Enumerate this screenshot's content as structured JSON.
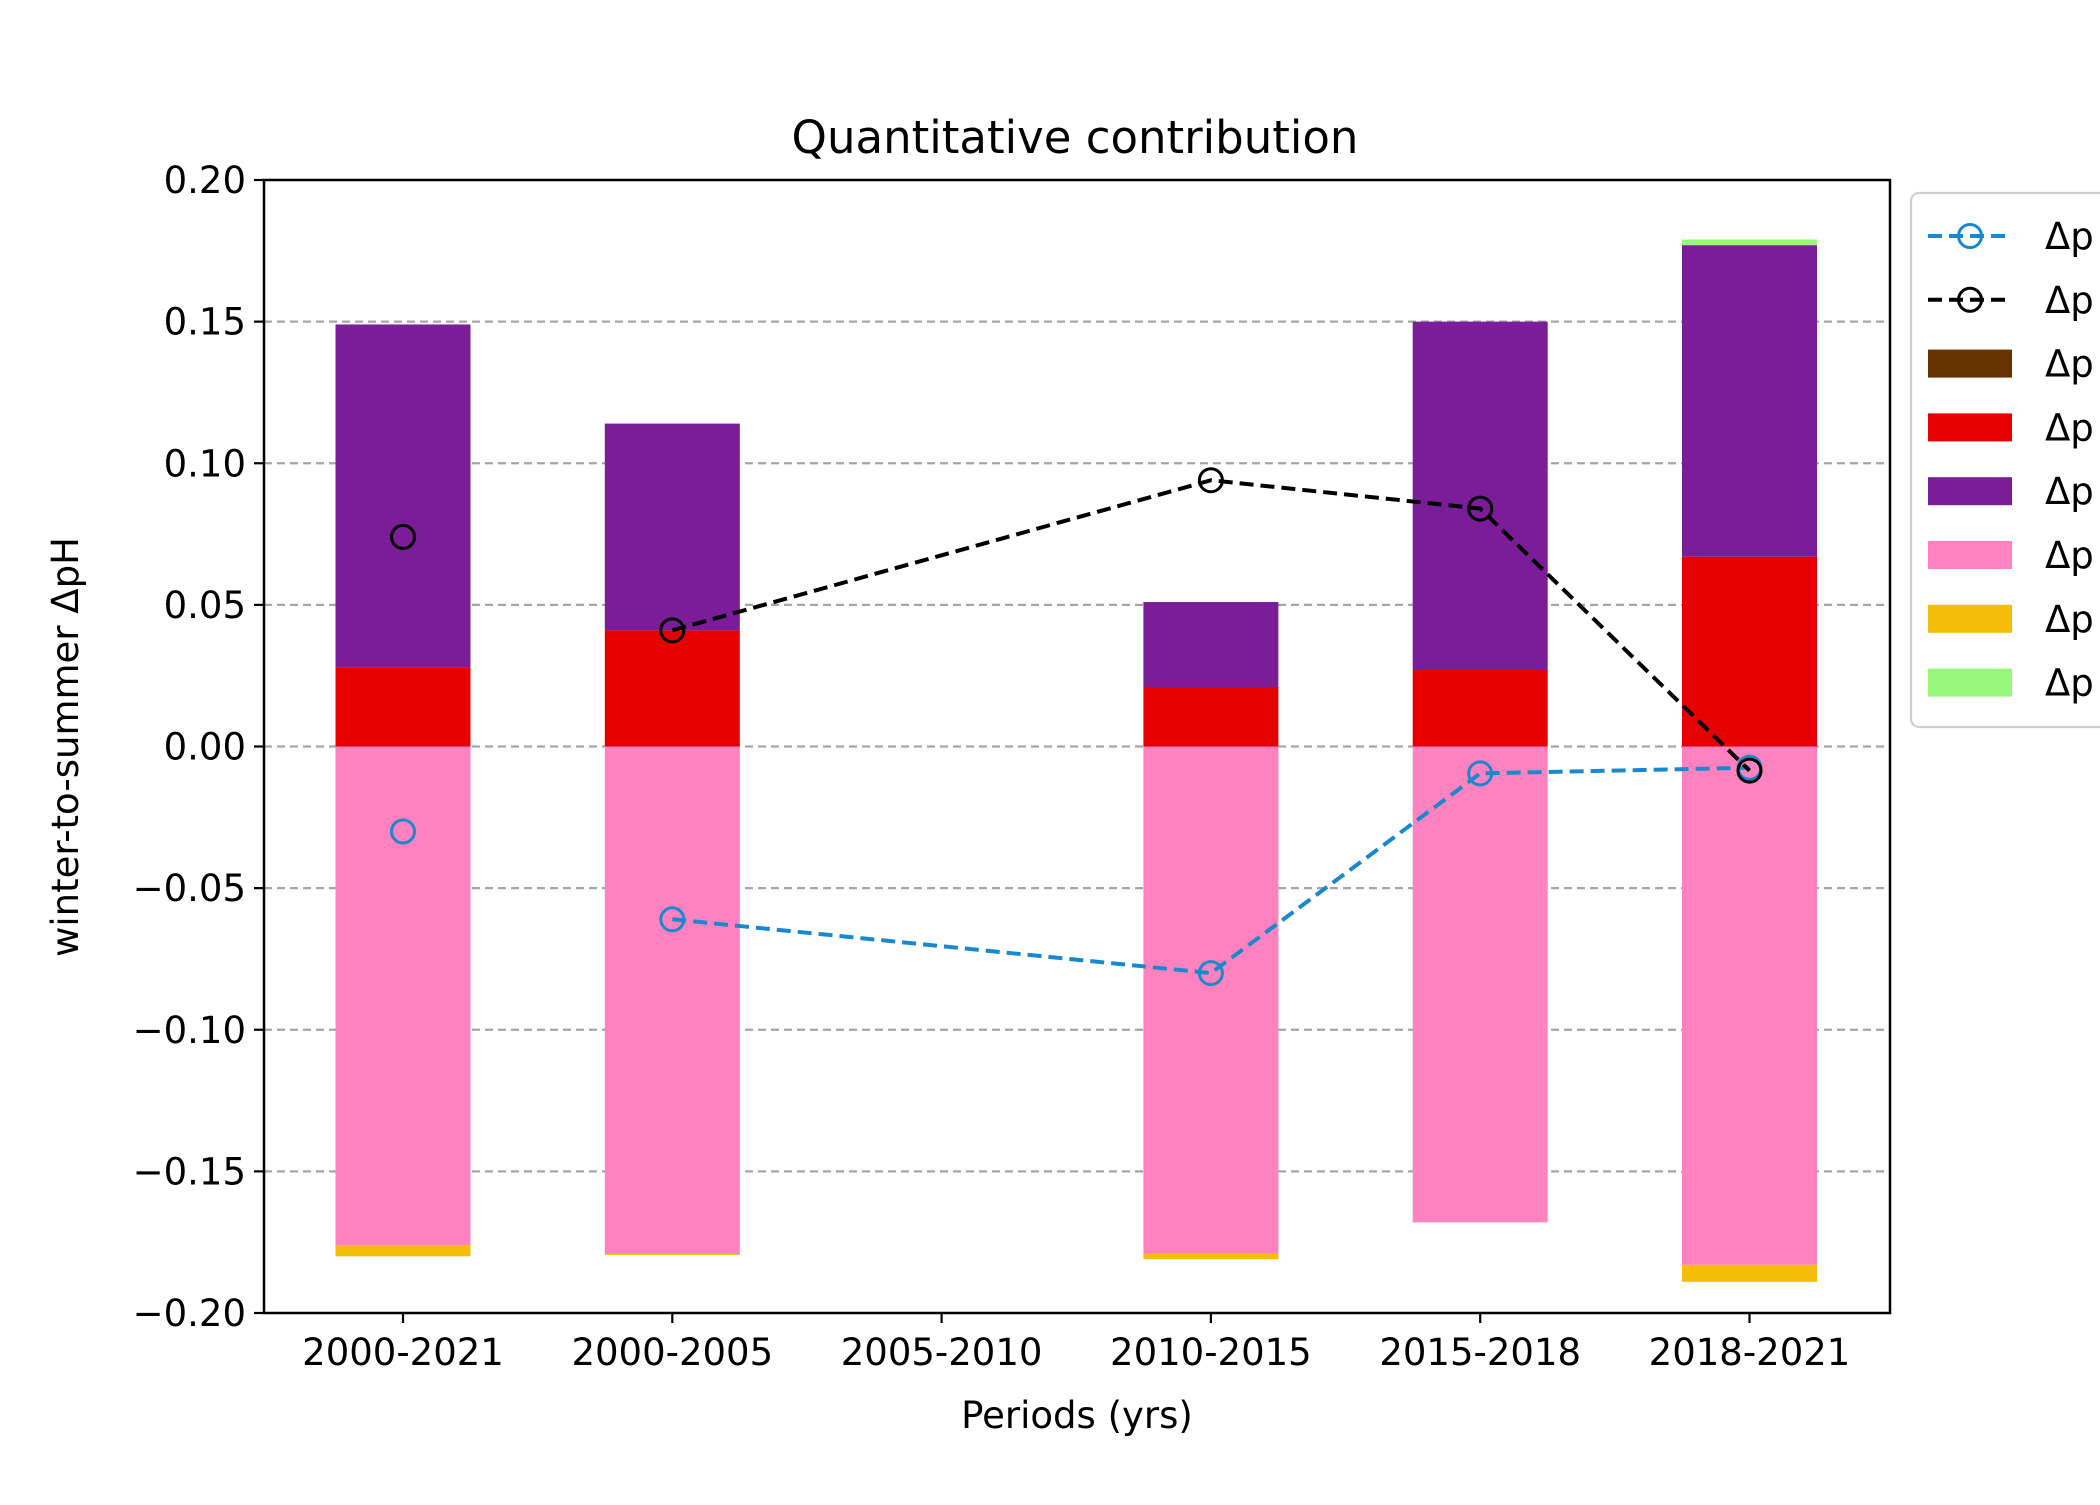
{
  "chart_data": {
    "type": "bar",
    "title": "Quantitative contribution",
    "xlabel": "Periods (yrs)",
    "ylabel": "winter-to-summer ΔpH",
    "ylim": [
      -0.2,
      0.2
    ],
    "yticks": [
      -0.2,
      -0.15,
      -0.1,
      -0.05,
      0.0,
      0.05,
      0.1,
      0.15,
      0.2
    ],
    "ytick_labels": [
      "−0.20",
      "−0.15",
      "−0.10",
      "−0.05",
      "0.00",
      "0.05",
      "0.10",
      "0.15",
      "0.20"
    ],
    "categories": [
      "2000-2021",
      "2000-2005",
      "2005-2010",
      "2010-2015",
      "2015-2018",
      "2018-2021"
    ],
    "grid": "horizontal dashed",
    "legend_placement": "outside right, top (clipped)",
    "stacked_series": [
      {
        "name": "Δp",
        "color": "#663300",
        "values": [
          0,
          0,
          0,
          0,
          0,
          0
        ]
      },
      {
        "name": "Δp",
        "color": "#e60000",
        "values": [
          0.028,
          0.041,
          0,
          0.021,
          0.027,
          0.067
        ]
      },
      {
        "name": "Δp",
        "color": "#7b1c99",
        "values": [
          0.121,
          0.073,
          0,
          0.03,
          0.123,
          0.11
        ]
      },
      {
        "name": "Δp",
        "color": "#ff82c0",
        "values": [
          -0.176,
          -0.179,
          0,
          -0.179,
          -0.168,
          -0.183
        ]
      },
      {
        "name": "Δp",
        "color": "#f5bc0a",
        "values": [
          -0.004,
          -0.0005,
          0,
          -0.002,
          0,
          -0.006
        ]
      },
      {
        "name": "Δp",
        "color": "#98f77a",
        "values": [
          0,
          0,
          0,
          0,
          0,
          0.002
        ]
      }
    ],
    "line_series": [
      {
        "name": "Δp",
        "color": "#1a88cc",
        "values": [
          -0.03,
          -0.061,
          null,
          -0.08,
          -0.0095,
          -0.0075
        ],
        "connect_from_index": 1
      },
      {
        "name": "Δp",
        "color": "#000000",
        "values": [
          0.074,
          0.041,
          null,
          0.094,
          0.084,
          -0.0085
        ],
        "connect_from_index": 1
      }
    ],
    "legend": [
      {
        "label": "Δp",
        "kind": "line",
        "color": "#1a88cc"
      },
      {
        "label": "Δp",
        "kind": "line",
        "color": "#000000"
      },
      {
        "label": "Δp",
        "kind": "patch",
        "color": "#663300"
      },
      {
        "label": "Δp",
        "kind": "patch",
        "color": "#e60000"
      },
      {
        "label": "Δp",
        "kind": "patch",
        "color": "#7b1c99"
      },
      {
        "label": "Δp",
        "kind": "patch",
        "color": "#ff82c0"
      },
      {
        "label": "Δp",
        "kind": "patch",
        "color": "#f5bc0a"
      },
      {
        "label": "Δp",
        "kind": "patch",
        "color": "#98f77a"
      }
    ]
  }
}
